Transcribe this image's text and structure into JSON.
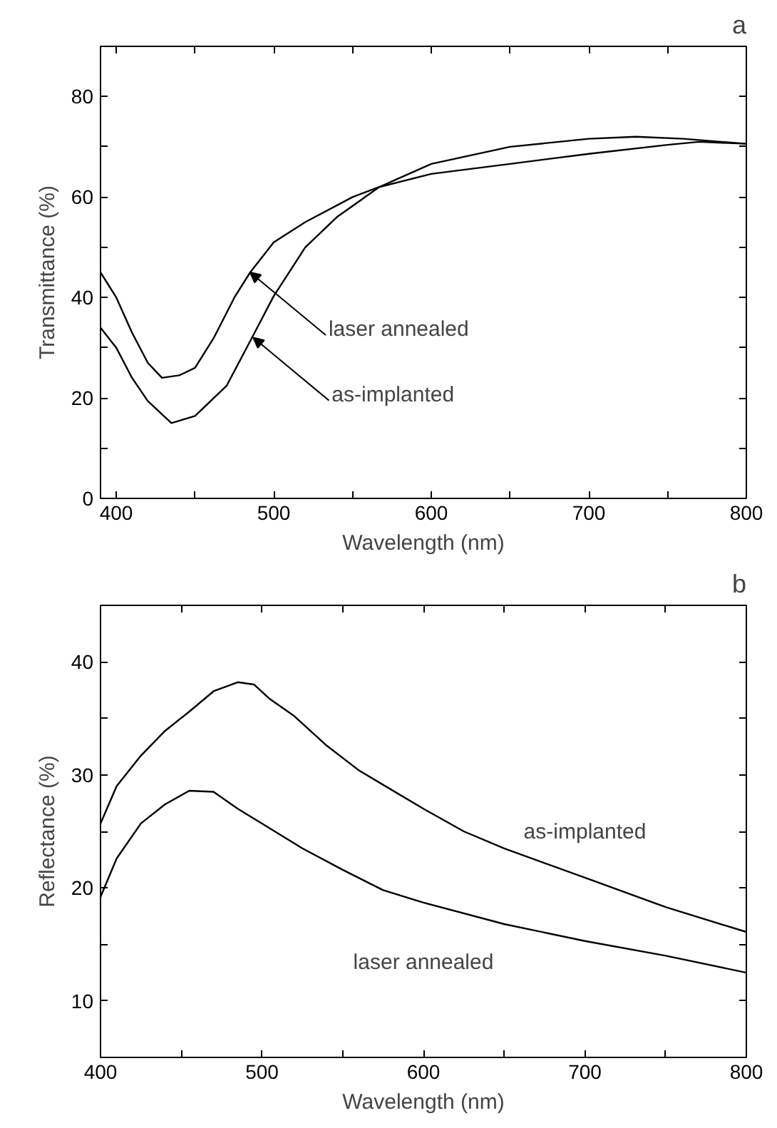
{
  "chart_data": [
    {
      "type": "line",
      "title": "a",
      "xlabel": "Wavelength (nm)",
      "ylabel": "Transmittance (%)",
      "xlim": [
        390,
        800
      ],
      "ylim": [
        0,
        90
      ],
      "xticks": [
        400,
        {
          "value": 450,
          "label": null
        },
        500,
        {
          "value": 550,
          "label": null
        },
        600,
        {
          "value": 650,
          "label": null
        },
        700,
        {
          "value": 750,
          "label": null
        },
        800
      ],
      "yticks": [
        0,
        {
          "value": 10,
          "label": null
        },
        20,
        {
          "value": 30,
          "label": null
        },
        40,
        {
          "value": 50,
          "label": null
        },
        60,
        {
          "value": 70,
          "label": null
        },
        80
      ],
      "series": [
        {
          "color": "#000000",
          "x": [
            390,
            400,
            410,
            420,
            429,
            440,
            450,
            462,
            475,
            485,
            500,
            520,
            550,
            567,
            600,
            650,
            700,
            750,
            770,
            800
          ],
          "values": [
            45,
            40,
            33,
            27,
            24,
            24.5,
            26,
            32,
            40,
            45,
            51,
            55,
            60,
            62,
            64.6,
            66.6,
            68.6,
            70.4,
            71,
            70.6
          ]
        },
        {
          "color": "#000000",
          "x": [
            390,
            400,
            410,
            420,
            435,
            450,
            470,
            485,
            500,
            520,
            540,
            567,
            600,
            650,
            700,
            730,
            760,
            800
          ],
          "values": [
            34,
            30,
            24,
            19.4,
            15,
            16.4,
            22.4,
            31.3,
            40.3,
            50,
            56,
            62,
            66.6,
            70,
            71.6,
            72,
            71.6,
            70.6
          ]
        }
      ],
      "annotations": [
        {
          "text": "laser annealed",
          "x": 485,
          "y": 45
        },
        {
          "text": "as-implanted",
          "x": 487,
          "y": 32
        }
      ],
      "line_style": "solid",
      "marker": "none",
      "grid": false
    },
    {
      "type": "line",
      "title": "b",
      "xlabel": "Wavelength (nm)",
      "ylabel": "Reflectance (%)",
      "xlim": [
        400,
        800
      ],
      "ylim": [
        5,
        45
      ],
      "xticks": [
        400,
        {
          "value": 450,
          "label": null
        },
        500,
        {
          "value": 550,
          "label": null
        },
        600,
        {
          "value": 650,
          "label": null
        },
        700,
        {
          "value": 750,
          "label": null
        },
        800
      ],
      "yticks": [
        10,
        {
          "value": 15,
          "label": null
        },
        20,
        {
          "value": 25,
          "label": null
        },
        30,
        {
          "value": 35,
          "label": null
        },
        40
      ],
      "series": [
        {
          "name": "as-implanted",
          "color": "#000000",
          "x": [
            400,
            410,
            425,
            440,
            455,
            470,
            485,
            495,
            505,
            520,
            540,
            560,
            580,
            600,
            625,
            650,
            700,
            750,
            800
          ],
          "values": [
            25.7,
            29,
            31.7,
            33.9,
            35.6,
            37.4,
            38.2,
            38,
            36.7,
            35.2,
            32.6,
            30.4,
            28.7,
            27,
            25,
            23.5,
            20.9,
            18.3,
            16.1
          ]
        },
        {
          "name": "laser annealed",
          "color": "#000000",
          "x": [
            400,
            410,
            425,
            440,
            455,
            470,
            485,
            500,
            525,
            550,
            575,
            600,
            650,
            700,
            750,
            800
          ],
          "values": [
            19.2,
            22.6,
            25.7,
            27.4,
            28.6,
            28.5,
            27,
            25.7,
            23.5,
            21.6,
            19.8,
            18.7,
            16.8,
            15.3,
            14,
            12.5
          ]
        }
      ],
      "line_style": "solid",
      "marker": "none",
      "grid": false
    }
  ]
}
